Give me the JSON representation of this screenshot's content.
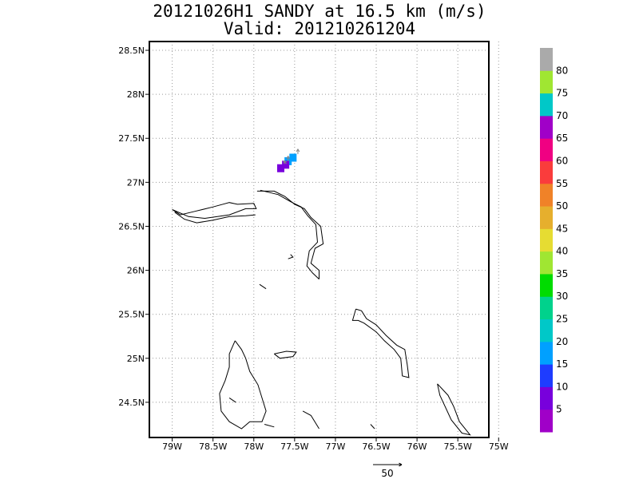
{
  "chart_data": {
    "type": "map",
    "title": "20121026H1 SANDY at 16.5 km (m/s)",
    "subtitle": "Valid: 201210261204",
    "x_ticks": [
      {
        "lon": -79.0,
        "label": "79W"
      },
      {
        "lon": -78.5,
        "label": "78.5W"
      },
      {
        "lon": -78.0,
        "label": "78W"
      },
      {
        "lon": -77.5,
        "label": "77.5W"
      },
      {
        "lon": -77.0,
        "label": "77W"
      },
      {
        "lon": -76.5,
        "label": "76.5W"
      },
      {
        "lon": -76.0,
        "label": "76W"
      },
      {
        "lon": -75.5,
        "label": "75.5W"
      },
      {
        "lon": -75.0,
        "label": "75W"
      }
    ],
    "y_ticks": [
      {
        "lat": 24.5,
        "label": "24.5N"
      },
      {
        "lat": 25.0,
        "label": "25N"
      },
      {
        "lat": 25.5,
        "label": "25.5N"
      },
      {
        "lat": 26.0,
        "label": "26N"
      },
      {
        "lat": 26.5,
        "label": "26.5N"
      },
      {
        "lat": 27.0,
        "label": "27N"
      },
      {
        "lat": 27.5,
        "label": "27.5N"
      },
      {
        "lat": 28.0,
        "label": "28N"
      },
      {
        "lat": 28.5,
        "label": "28.5N"
      }
    ],
    "xlim": [
      -79.28,
      -75.12
    ],
    "ylim": [
      24.1,
      28.6
    ],
    "grid": true,
    "colorbar": {
      "colors": [
        "#a000c8",
        "#7800dc",
        "#1e3cff",
        "#00a0ff",
        "#00c8c8",
        "#00d28c",
        "#00dc00",
        "#a0e632",
        "#e6dc32",
        "#e6af2d",
        "#f08228",
        "#fa3c3c",
        "#f00082",
        "#a000c8",
        "#00c8c8",
        "#a0e632",
        "#aaaaaa"
      ],
      "labels": [
        "5",
        "10",
        "15",
        "20",
        "25",
        "30",
        "35",
        "40",
        "45",
        "50",
        "55",
        "60",
        "65",
        "70",
        "75",
        "80"
      ]
    },
    "wind_cells": [
      {
        "lon": -77.58,
        "lat": 27.24,
        "speed": 15
      },
      {
        "lon": -77.52,
        "lat": 27.28,
        "speed": 15
      },
      {
        "lon": -77.67,
        "lat": 27.16,
        "speed": 8
      },
      {
        "lon": -77.61,
        "lat": 27.2,
        "speed": 8
      }
    ],
    "wind_vectors": [
      {
        "lon": -77.58,
        "lat": 27.24,
        "u": 0,
        "v": 9
      },
      {
        "lon": -77.46,
        "lat": 27.32,
        "u": 0,
        "v": 9
      },
      {
        "lon": -77.6,
        "lat": 27.21,
        "u": -5,
        "v": 5
      }
    ],
    "vector_scale_label": "50",
    "coastlines": [
      [
        [
          -79.0,
          26.69
        ],
        [
          -78.8,
          26.61
        ],
        [
          -78.6,
          26.59
        ],
        [
          -78.3,
          26.63
        ],
        [
          -78.1,
          26.7
        ],
        [
          -77.97,
          26.7
        ],
        [
          -78.0,
          26.76
        ],
        [
          -78.2,
          26.75
        ],
        [
          -78.3,
          26.77
        ],
        [
          -78.5,
          26.72
        ],
        [
          -78.72,
          26.67
        ],
        [
          -78.9,
          26.63
        ],
        [
          -79.0,
          26.69
        ]
      ],
      [
        [
          -78.97,
          26.66
        ],
        [
          -78.85,
          26.58
        ],
        [
          -78.7,
          26.54
        ],
        [
          -78.5,
          26.57
        ],
        [
          -78.3,
          26.61
        ],
        [
          -78.1,
          26.62
        ],
        [
          -77.98,
          26.63
        ]
      ],
      [
        [
          -77.96,
          26.9
        ],
        [
          -77.75,
          26.9
        ],
        [
          -77.62,
          26.84
        ],
        [
          -77.5,
          26.75
        ],
        [
          -77.38,
          26.7
        ],
        [
          -77.3,
          26.6
        ],
        [
          -77.18,
          26.5
        ],
        [
          -77.15,
          26.3
        ],
        [
          -77.25,
          26.25
        ],
        [
          -77.3,
          26.08
        ],
        [
          -77.2,
          26.0
        ],
        [
          -77.2,
          25.9
        ]
      ],
      [
        [
          -77.92,
          26.91
        ],
        [
          -77.7,
          26.86
        ],
        [
          -77.55,
          26.78
        ],
        [
          -77.42,
          26.72
        ],
        [
          -77.34,
          26.62
        ],
        [
          -77.24,
          26.52
        ],
        [
          -77.22,
          26.32
        ],
        [
          -77.32,
          26.22
        ],
        [
          -77.35,
          26.05
        ],
        [
          -77.28,
          25.97
        ],
        [
          -77.2,
          25.9
        ]
      ],
      [
        [
          -77.55,
          26.18
        ],
        [
          -77.52,
          26.15
        ],
        [
          -77.58,
          26.13
        ]
      ],
      [
        [
          -77.93,
          25.84
        ],
        [
          -77.85,
          25.79
        ]
      ],
      [
        [
          -77.2,
          24.2
        ],
        [
          -77.3,
          24.35
        ],
        [
          -77.4,
          24.4
        ]
      ],
      [
        [
          -76.75,
          25.56
        ],
        [
          -76.68,
          25.54
        ],
        [
          -76.62,
          25.45
        ],
        [
          -76.5,
          25.38
        ],
        [
          -76.38,
          25.26
        ],
        [
          -76.25,
          25.15
        ],
        [
          -76.15,
          25.1
        ],
        [
          -76.12,
          24.93
        ],
        [
          -76.1,
          24.78
        ],
        [
          -76.18,
          24.8
        ],
        [
          -76.2,
          25.0
        ],
        [
          -76.28,
          25.1
        ],
        [
          -76.4,
          25.2
        ],
        [
          -76.5,
          25.3
        ],
        [
          -76.65,
          25.4
        ],
        [
          -76.72,
          25.43
        ],
        [
          -76.79,
          25.43
        ],
        [
          -76.75,
          25.56
        ]
      ],
      [
        [
          -77.75,
          25.05
        ],
        [
          -77.6,
          25.08
        ],
        [
          -77.48,
          25.07
        ],
        [
          -77.52,
          25.02
        ],
        [
          -77.68,
          25.0
        ],
        [
          -77.75,
          25.05
        ]
      ],
      [
        [
          -75.75,
          24.71
        ],
        [
          -75.62,
          24.58
        ],
        [
          -75.55,
          24.45
        ],
        [
          -75.48,
          24.28
        ],
        [
          -75.35,
          24.13
        ],
        [
          -75.45,
          24.15
        ],
        [
          -75.58,
          24.3
        ],
        [
          -75.68,
          24.5
        ],
        [
          -75.72,
          24.58
        ],
        [
          -75.75,
          24.71
        ]
      ],
      [
        [
          -76.57,
          24.25
        ],
        [
          -76.52,
          24.2
        ]
      ],
      [
        [
          -78.23,
          25.2
        ],
        [
          -78.15,
          25.1
        ],
        [
          -78.1,
          25.0
        ],
        [
          -78.05,
          24.85
        ],
        [
          -77.95,
          24.7
        ],
        [
          -77.9,
          24.55
        ],
        [
          -77.85,
          24.4
        ],
        [
          -77.9,
          24.28
        ],
        [
          -78.05,
          24.28
        ],
        [
          -78.15,
          24.2
        ],
        [
          -78.3,
          24.28
        ],
        [
          -78.4,
          24.4
        ],
        [
          -78.42,
          24.6
        ],
        [
          -78.35,
          24.75
        ],
        [
          -78.3,
          24.9
        ],
        [
          -78.3,
          25.05
        ],
        [
          -78.23,
          25.2
        ]
      ],
      [
        [
          -78.3,
          24.55
        ],
        [
          -78.22,
          24.5
        ]
      ],
      [
        [
          -77.87,
          24.25
        ],
        [
          -77.75,
          24.22
        ]
      ]
    ]
  }
}
